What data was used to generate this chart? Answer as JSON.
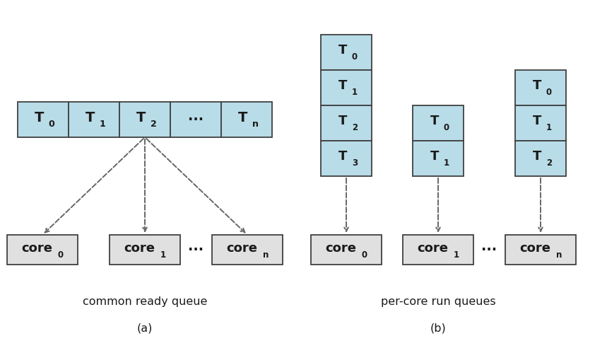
{
  "fig_width": 8.59,
  "fig_height": 4.99,
  "dpi": 100,
  "bg_color": "#ffffff",
  "box_fill_blue": "#b8dce8",
  "box_fill_gray": "#e0e0e0",
  "box_edge_color": "#404040",
  "text_color": "#1a1a1a",
  "arrow_color": "#666666",
  "title_a": "common ready queue",
  "subtitle_a": "(a)",
  "title_b": "per-core run queues",
  "subtitle_b": "(b)"
}
